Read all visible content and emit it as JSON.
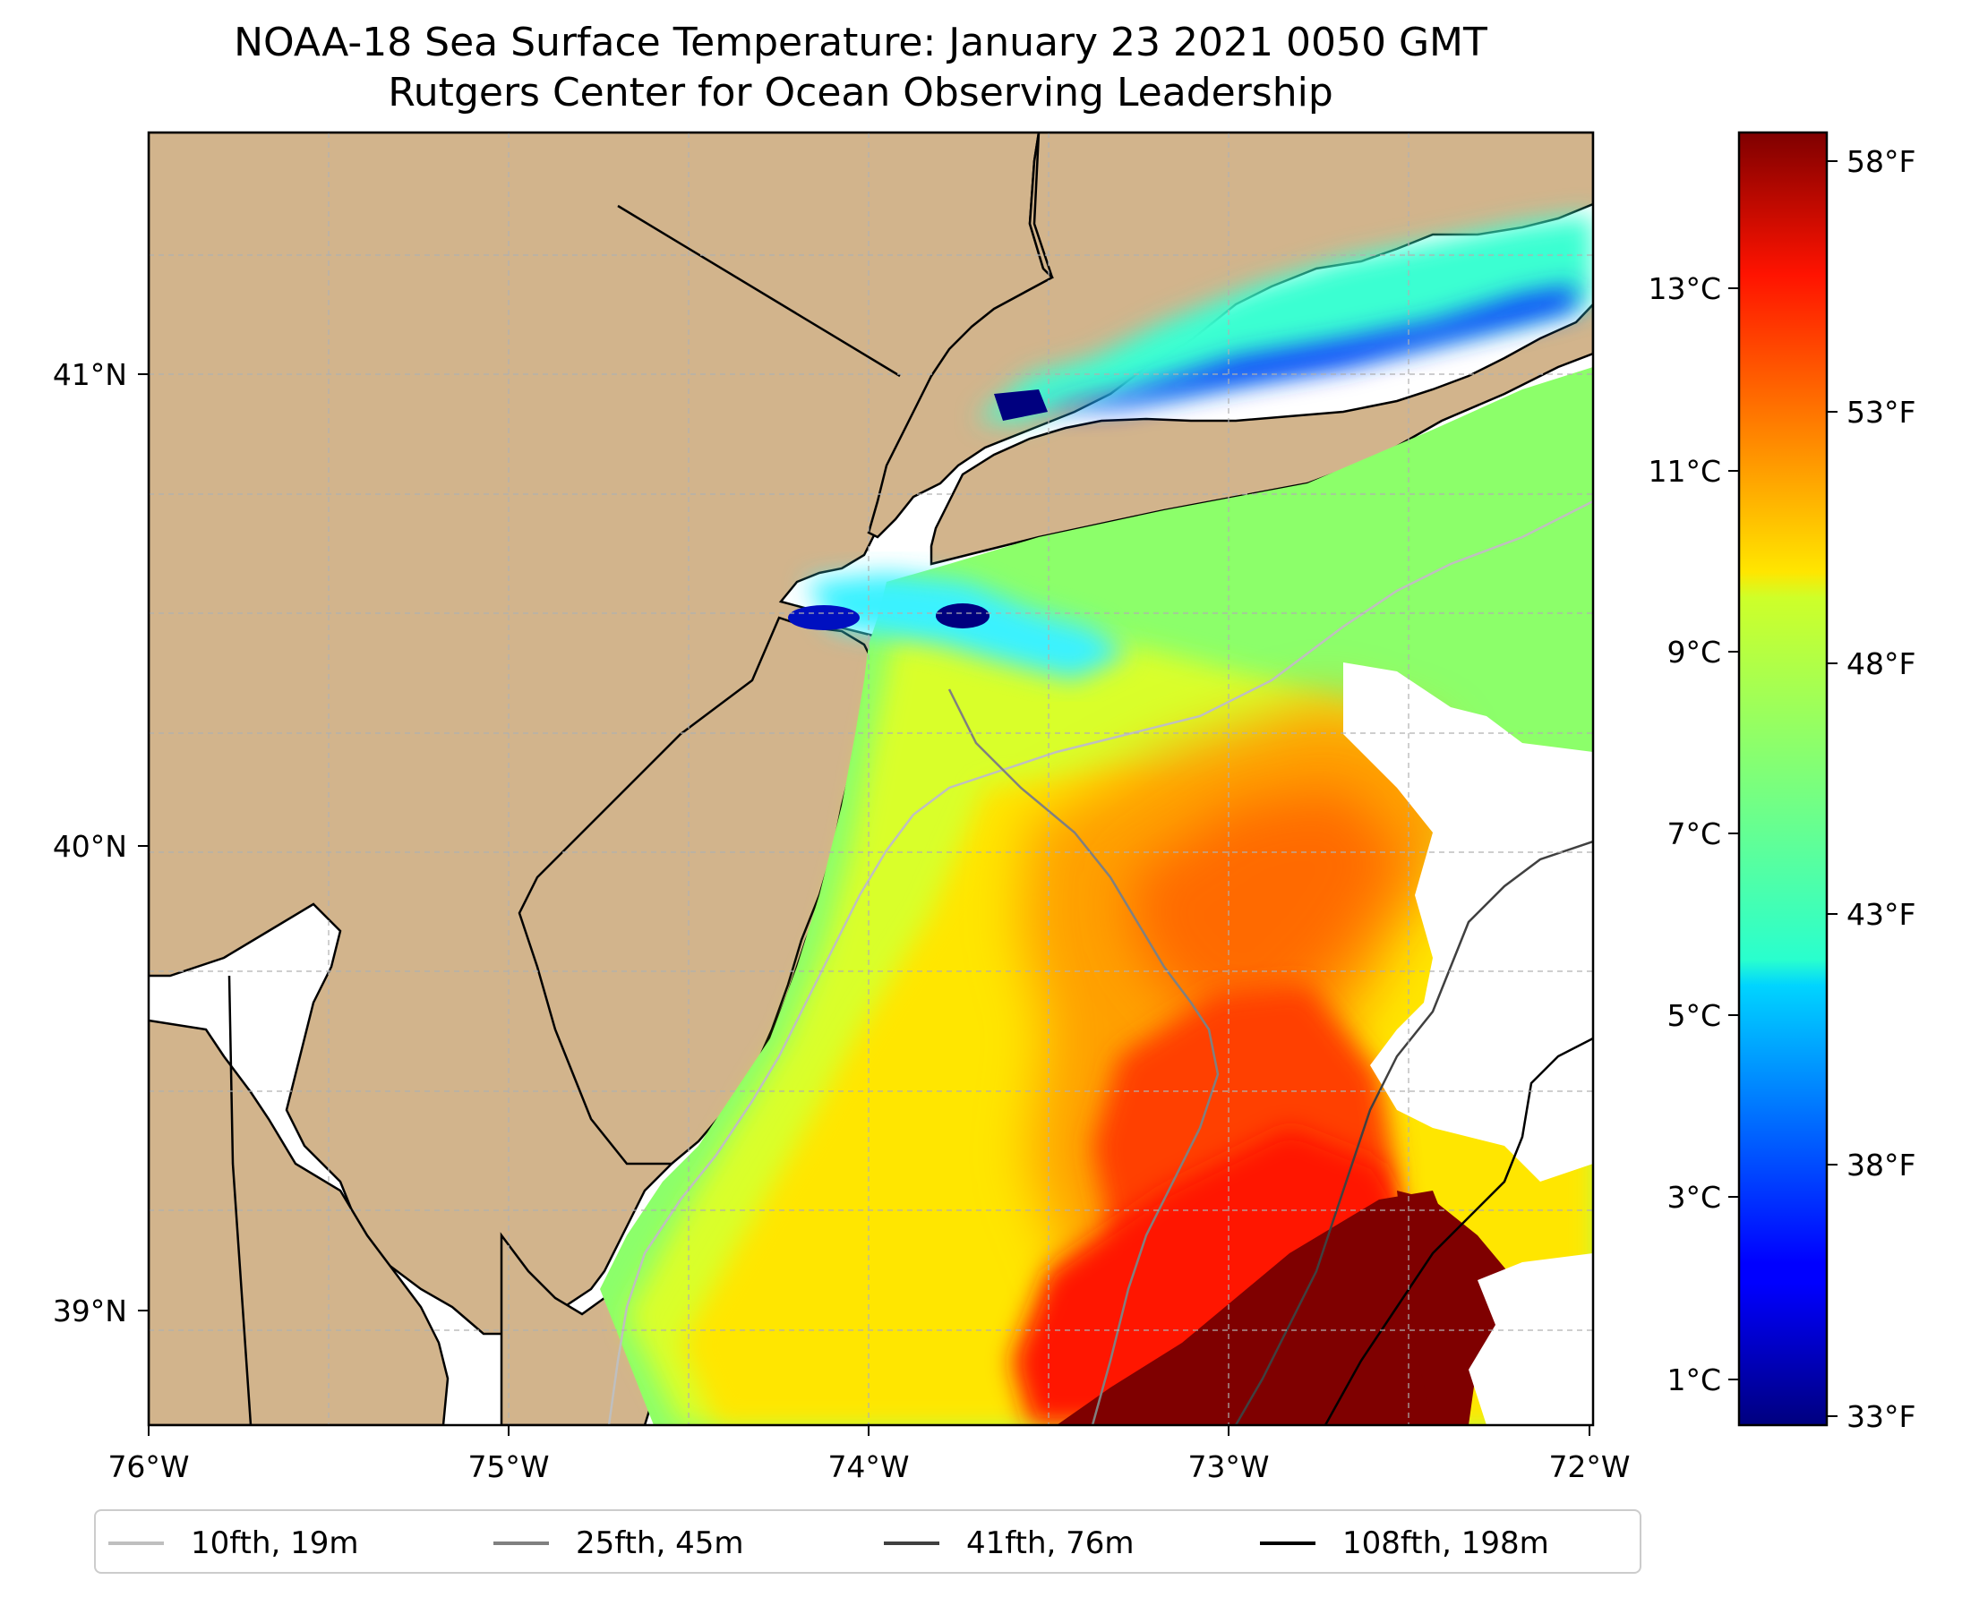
{
  "title": {
    "line1": "NOAA-18 Sea Surface Temperature: January 23 2021 0050 GMT",
    "line2": "Rutgers Center for Ocean Observing Leadership"
  },
  "map": {
    "lon_range": [
      -76,
      -72
    ],
    "lat_range": [
      38.75,
      41.52
    ],
    "lon_ticks": [
      "76°W",
      "75°W",
      "74°W",
      "73°W",
      "72°W"
    ],
    "lat_ticks": [
      "41°N",
      "40°N",
      "39°N"
    ],
    "land_color": "#d2b48c",
    "grid": true
  },
  "colorbar": {
    "colormap": "jet",
    "celsius_ticks": [
      "13°C",
      "11°C",
      "9°C",
      "7°C",
      "5°C",
      "3°C",
      "1°C"
    ],
    "fahrenheit_ticks": [
      "58°F",
      "53°F",
      "48°F",
      "43°F",
      "38°F",
      "33°F"
    ]
  },
  "legend": {
    "items": [
      {
        "label": "10fth, 19m",
        "color": "#bfbfbf"
      },
      {
        "label": "25fth, 45m",
        "color": "#808080"
      },
      {
        "label": "41fth, 76m",
        "color": "#404040"
      },
      {
        "label": "108fth, 198m",
        "color": "#000000"
      }
    ]
  }
}
